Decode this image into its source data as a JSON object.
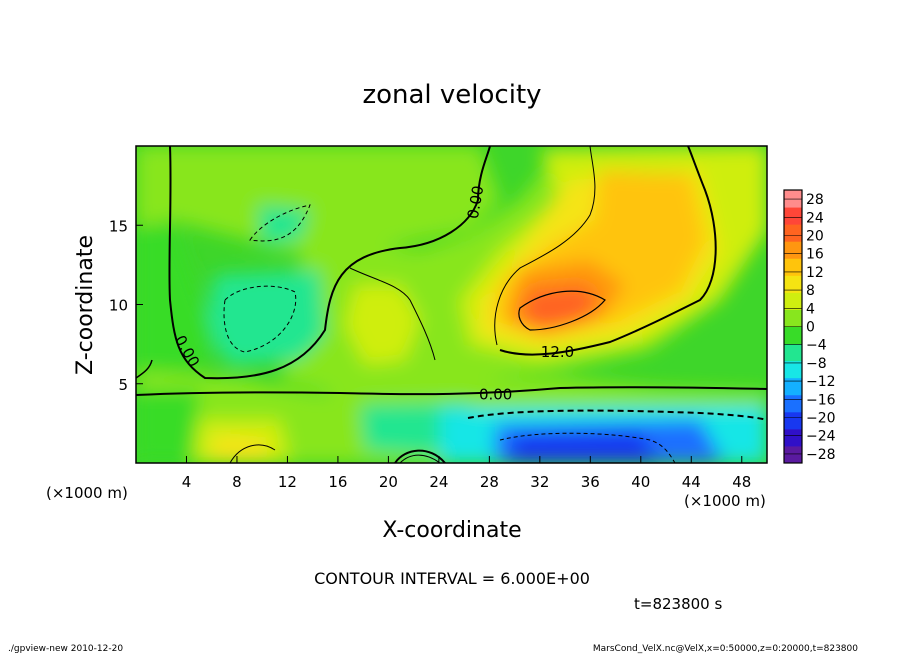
{
  "chart_data": {
    "type": "heatmap",
    "title": "zonal velocity",
    "xlabel": "X-coordinate",
    "ylabel": "Z-coordinate",
    "x_unit_left": "(×1000 m)",
    "x_unit_right": "(×1000 m)",
    "xlim": [
      0,
      50
    ],
    "ylim": [
      0,
      20
    ],
    "x_ticks": [
      4,
      8,
      12,
      16,
      20,
      24,
      28,
      32,
      36,
      40,
      44,
      48
    ],
    "y_ticks": [
      5,
      10,
      15
    ],
    "colorbar": {
      "levels": [
        28,
        24,
        20,
        16,
        12,
        8,
        4,
        0,
        -4,
        -8,
        -12,
        -16,
        -20,
        -24,
        -28
      ],
      "labels": [
        "28",
        "24",
        "20",
        "16",
        "12",
        "8",
        "4",
        "0",
        "−4",
        "−8",
        "−12",
        "−16",
        "−20",
        "−24",
        "−28"
      ],
      "range": [
        -30,
        30
      ]
    },
    "contour_labels": [
      {
        "text": "0.00",
        "x": 27.3,
        "y": 16.4
      },
      {
        "text": "12.0",
        "x": 33.4,
        "y": 6.7
      },
      {
        "text": "0.00",
        "x": 28.5,
        "y": 4.0
      },
      {
        "text": "0.00",
        "x": 3.7,
        "y": 6.9
      }
    ],
    "contour_interval": "CONTOUR INTERVAL = 6.000E+00",
    "time_label": "t=823800 s",
    "footer_left": "./gpview-new  2010-12-20",
    "footer_right": "MarsCond_VelX.nc@VelX,x=0:50000,z=0:20000,t=823800"
  }
}
